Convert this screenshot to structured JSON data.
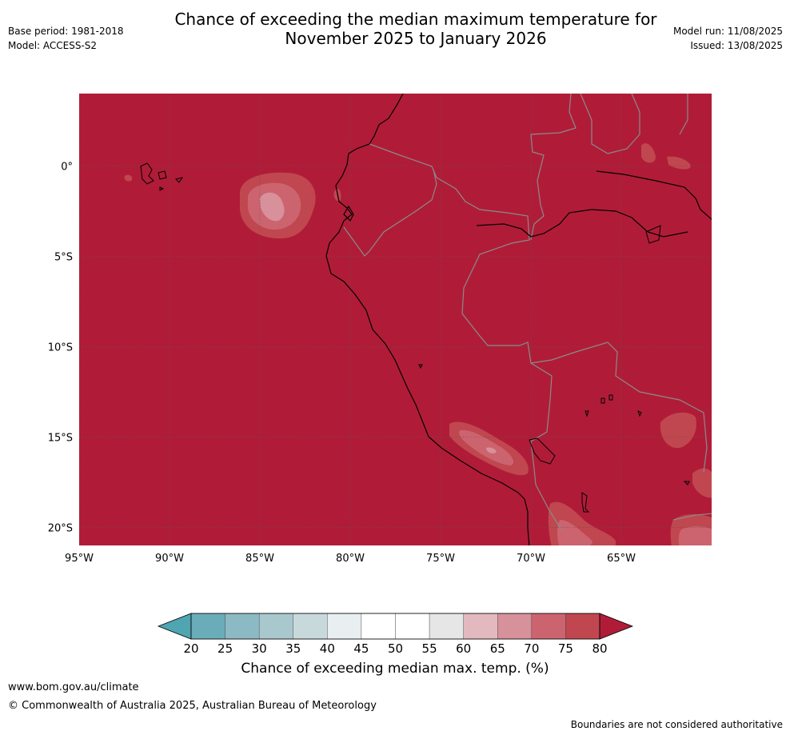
{
  "title_line1": "Chance of exceeding the median maximum temperature for",
  "title_line2": "November 2025 to January 2026",
  "base_period": "Base period: 1981-2018",
  "model": "Model: ACCESS-S2",
  "model_run": "Model run: 11/08/2025",
  "issued": "Issued: 13/08/2025",
  "map": {
    "lon_range": [
      -95,
      -60
    ],
    "lat_range": [
      -21,
      4
    ],
    "lon_ticks": [
      -95,
      -90,
      -85,
      -80,
      -75,
      -70,
      -65
    ],
    "lon_tick_labels": [
      "95°W",
      "90°W",
      "85°W",
      "80°W",
      "75°W",
      "70°W",
      "65°W"
    ],
    "lat_ticks": [
      0,
      -5,
      -10,
      -15,
      -20
    ],
    "lat_tick_labels": [
      "0°",
      "5°S",
      "10°S",
      "15°S",
      "20°S"
    ],
    "gridlines": true,
    "dominant_category": "80+",
    "colors": {
      "cat_80plus": "#b01c38",
      "cat_75_80": "#c0474f",
      "cat_70_75": "#cc6470",
      "cat_65_70": "#d8919a",
      "cat_60_65": "#e3b9be"
    }
  },
  "colorbar": {
    "title": "Chance of exceeding median max. temp. (%)",
    "ticks": [
      "20",
      "25",
      "30",
      "35",
      "40",
      "45",
      "50",
      "55",
      "60",
      "65",
      "70",
      "75",
      "80"
    ],
    "colors": [
      "#6aadb8",
      "#8bbac4",
      "#a9c8ce",
      "#c8d9dc",
      "#e9eff1",
      "#ffffff",
      "#ffffff",
      "#e6e6e6",
      "#e2b9be",
      "#d6919a",
      "#cc6470",
      "#c0474f"
    ],
    "under_color": "#4fa5b1",
    "over_color": "#b01c38"
  },
  "footer": {
    "url": "www.bom.gov.au/climate",
    "copyright": "© Commonwealth of Australia 2025, Australian Bureau of Meteorology",
    "note": "Boundaries are not considered authoritative"
  }
}
